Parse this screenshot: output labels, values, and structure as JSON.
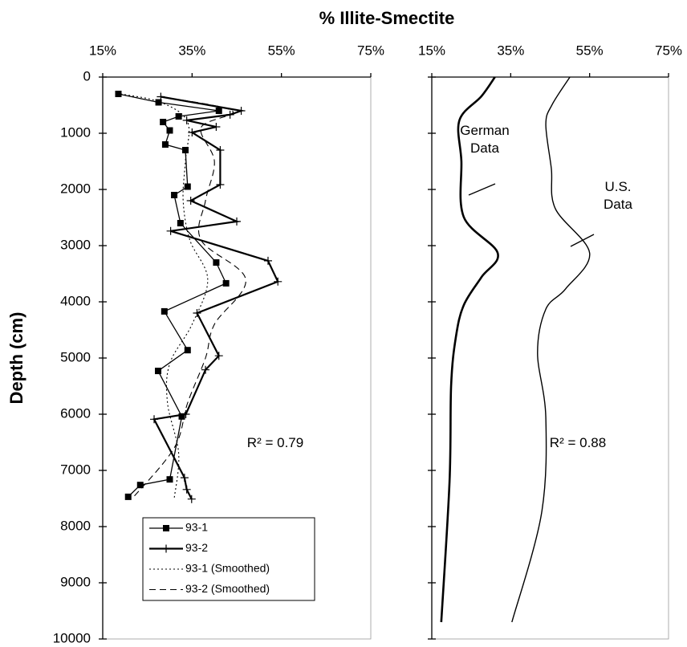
{
  "chart_data": [
    {
      "type": "line",
      "title": "% Illite-Smectite",
      "ylabel": "Depth (cm)",
      "xlim": [
        15,
        75
      ],
      "xticks": [
        {
          "value": 15,
          "label": "15%"
        },
        {
          "value": 35,
          "label": "35%"
        },
        {
          "value": 55,
          "label": "55%"
        },
        {
          "value": 75,
          "label": "75%"
        }
      ],
      "ylim": [
        0,
        10000
      ],
      "yticks": [
        0,
        1000,
        2000,
        3000,
        4000,
        5000,
        6000,
        7000,
        8000,
        9000,
        10000
      ],
      "y_reversed": true,
      "legend": "lower left",
      "annotations": [
        "R² = 0.79"
      ],
      "series": [
        {
          "name": "93-1",
          "color": "#000000",
          "marker": "square",
          "style": "solid",
          "width": 1.3,
          "smooth": false,
          "x": [
            18.5,
            27.5,
            41,
            32,
            28.5,
            30,
            29,
            33.5,
            34,
            31,
            32.4,
            40.4,
            42.6,
            28.8,
            34,
            27.4,
            32.7,
            30,
            23.4,
            20.7
          ],
          "y": [
            300,
            450,
            600,
            700,
            800,
            950,
            1200,
            1300,
            1950,
            2100,
            2600,
            3300,
            3670,
            4170,
            4860,
            5230,
            6040,
            7160,
            7260,
            7470
          ]
        },
        {
          "name": "93-2",
          "color": "#000000",
          "marker": "plus",
          "style": "solid",
          "width": 2.2,
          "smooth": false,
          "x": [
            28,
            46,
            43.5,
            33.8,
            40.4,
            35,
            41.3,
            41.3,
            34.7,
            45,
            30.2,
            52,
            54.2,
            36.1,
            41,
            38,
            33.6,
            26.5,
            33.3,
            33.8,
            34.9
          ],
          "y": [
            350,
            600,
            670,
            770,
            886,
            986,
            1300,
            1914,
            2200,
            2570,
            2740,
            3270,
            3640,
            4200,
            4960,
            5210,
            6000,
            6090,
            7130,
            7340,
            7510
          ]
        },
        {
          "name": "93-1 (Smoothed)",
          "color": "#000000",
          "marker": "none",
          "style": "dotted",
          "width": 1.1,
          "smooth": true,
          "x": [
            19,
            28,
            34,
            33.5,
            33,
            34.5,
            38.5,
            35,
            30,
            29.5,
            32,
            31
          ],
          "y": [
            300,
            450,
            800,
            1500,
            2200,
            2900,
            3600,
            4400,
            5100,
            5800,
            6700,
            7500
          ]
        },
        {
          "name": "93-2 (Smoothed)",
          "color": "#000000",
          "marker": "none",
          "style": "dashed",
          "width": 1.1,
          "smooth": true,
          "x": [
            28,
            44,
            37,
            40,
            38,
            37,
            47,
            40,
            38,
            34,
            31,
            21.6
          ],
          "y": [
            350,
            600,
            900,
            1500,
            2200,
            2900,
            3600,
            4400,
            5000,
            5800,
            6600,
            7500
          ]
        }
      ]
    },
    {
      "type": "line",
      "xlim": [
        15,
        75
      ],
      "xticks": [
        {
          "value": 15,
          "label": "15%"
        },
        {
          "value": 35,
          "label": "35%"
        },
        {
          "value": 55,
          "label": "55%"
        },
        {
          "value": 75,
          "label": "75%"
        }
      ],
      "ylim": [
        0,
        10000
      ],
      "y_reversed": true,
      "annotations": [
        "German Data",
        "U.S. Data",
        "R² = 0.88"
      ],
      "series": [
        {
          "name": "German Data",
          "color": "#000000",
          "marker": "none",
          "style": "solid",
          "width": 2.6,
          "smooth": true,
          "x": [
            31,
            27.6,
            22,
            22.5,
            23.1,
            31.7,
            27.6,
            23.1,
            21.1,
            19.9,
            19.5,
            17.4
          ],
          "y": [
            0,
            340,
            770,
            1490,
            2490,
            3130,
            3560,
            4060,
            4630,
            5490,
            7200,
            9700
          ]
        },
        {
          "name": "U.S. Data",
          "color": "#000000",
          "marker": "none",
          "style": "solid",
          "width": 1.4,
          "smooth": true,
          "x": [
            50,
            45.5,
            43.9,
            45.3,
            46.3,
            55,
            48.9,
            43.9,
            41.8,
            43.9,
            42.8,
            35.3
          ],
          "y": [
            0,
            490,
            840,
            1630,
            2340,
            3130,
            3770,
            4130,
            4910,
            6060,
            7770,
            9700
          ]
        }
      ]
    }
  ]
}
